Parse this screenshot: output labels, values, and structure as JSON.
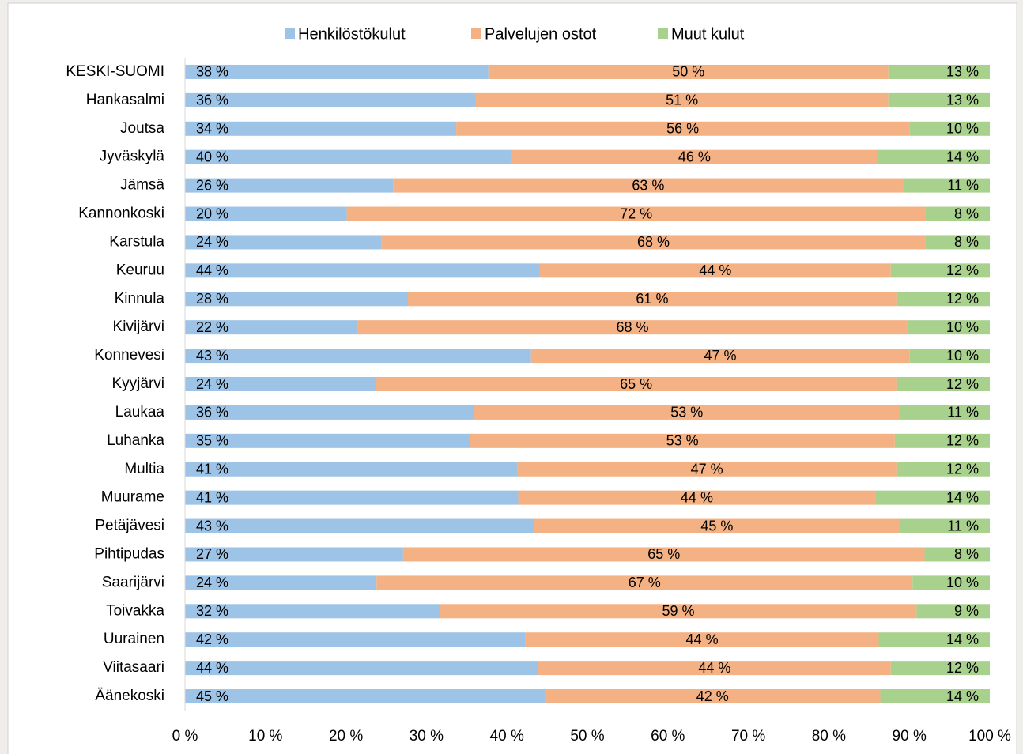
{
  "chart_data": {
    "type": "stacked_bar_horizontal",
    "categories": [
      "KESKI-SUOMI",
      "Hankasalmi",
      "Joutsa",
      "Jyväskylä",
      "Jämsä",
      "Kannonkoski",
      "Karstula",
      "Keuruu",
      "Kinnula",
      "Kivijärvi",
      "Konnevesi",
      "Kyyjärvi",
      "Laukaa",
      "Luhanka",
      "Multia",
      "Muurame",
      "Petäjävesi",
      "Pihtipudas",
      "Saarijärvi",
      "Toivakka",
      "Uurainen",
      "Viitasaari",
      "Äänekoski"
    ],
    "series": [
      {
        "name": "Henkilöstökulut",
        "color": "#9dc3e6",
        "values": [
          37.7,
          36.1,
          33.7,
          40.5,
          25.9,
          20.1,
          24.4,
          44.1,
          27.7,
          21.5,
          43.0,
          23.7,
          35.9,
          35.4,
          41.3,
          41.4,
          43.4,
          27.1,
          23.8,
          31.7,
          42.3,
          43.9,
          44.7
        ],
        "value_labels": [
          "38 %",
          "36 %",
          "34 %",
          "40 %",
          "26 %",
          "20 %",
          "24 %",
          "44 %",
          "28 %",
          "22 %",
          "43 %",
          "24 %",
          "36 %",
          "35 %",
          "41 %",
          "41 %",
          "43 %",
          "27 %",
          "24 %",
          "32 %",
          "42 %",
          "44 %",
          "45 %"
        ]
      },
      {
        "name": "Palvelujen ostot",
        "color": "#f4b183",
        "values": [
          49.7,
          51.3,
          56.3,
          45.6,
          63.3,
          71.9,
          67.6,
          43.6,
          60.7,
          68.2,
          47.0,
          64.7,
          52.9,
          52.8,
          47.1,
          44.4,
          45.4,
          64.8,
          66.6,
          59.2,
          43.9,
          43.8,
          41.7
        ],
        "value_labels": [
          "50 %",
          "51 %",
          "56 %",
          "46 %",
          "63 %",
          "72 %",
          "68 %",
          "44 %",
          "61 %",
          "68 %",
          "47 %",
          "65 %",
          "53 %",
          "53 %",
          "47 %",
          "44 %",
          "45 %",
          "65 %",
          "67 %",
          "59 %",
          "44 %",
          "44 %",
          "42 %"
        ]
      },
      {
        "name": "Muut kulut",
        "color": "#a9d18e",
        "values": [
          12.6,
          12.6,
          10.0,
          13.9,
          10.8,
          8.0,
          8.0,
          12.3,
          11.6,
          10.3,
          10.0,
          11.6,
          11.2,
          11.8,
          11.6,
          14.2,
          11.2,
          8.1,
          9.6,
          9.1,
          13.8,
          12.3,
          13.6
        ],
        "value_labels": [
          "13 %",
          "13 %",
          "10 %",
          "14 %",
          "11 %",
          "8 %",
          "8 %",
          "12 %",
          "12 %",
          "10 %",
          "10 %",
          "12 %",
          "11 %",
          "12 %",
          "12 %",
          "14 %",
          "11 %",
          "8 %",
          "10 %",
          "9 %",
          "14 %",
          "12 %",
          "14 %"
        ]
      }
    ],
    "xlim": [
      0,
      100
    ],
    "xticks": [
      {
        "value": 0,
        "label": "0 %"
      },
      {
        "value": 10,
        "label": "10 %"
      },
      {
        "value": 20,
        "label": "20 %"
      },
      {
        "value": 30,
        "label": "30 %"
      },
      {
        "value": 40,
        "label": "40 %"
      },
      {
        "value": 50,
        "label": "50 %"
      },
      {
        "value": 60,
        "label": "60 %"
      },
      {
        "value": 70,
        "label": "70 %"
      },
      {
        "value": 80,
        "label": "80 %"
      },
      {
        "value": 90,
        "label": "90 %"
      },
      {
        "value": 100,
        "label": "100 %"
      }
    ],
    "legend": "top"
  }
}
